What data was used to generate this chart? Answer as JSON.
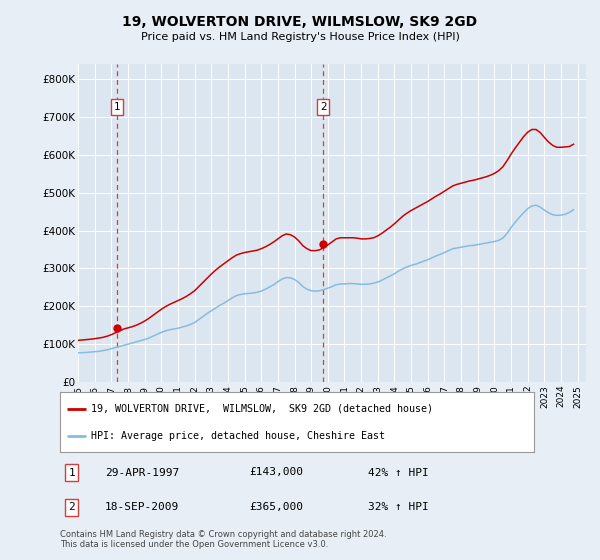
{
  "title": "19, WOLVERTON DRIVE, WILMSLOW, SK9 2GD",
  "subtitle": "Price paid vs. HM Land Registry's House Price Index (HPI)",
  "ylabel_ticks": [
    "£0",
    "£100K",
    "£200K",
    "£300K",
    "£400K",
    "£500K",
    "£600K",
    "£700K",
    "£800K"
  ],
  "ytick_values": [
    0,
    100000,
    200000,
    300000,
    400000,
    500000,
    600000,
    700000,
    800000
  ],
  "ylim": [
    0,
    840000
  ],
  "xlim_start": 1995.0,
  "xlim_end": 2025.5,
  "sale1_x": 1997.33,
  "sale1_y": 143000,
  "sale1_label": "1",
  "sale1_date": "29-APR-1997",
  "sale1_price": "£143,000",
  "sale1_hpi": "42% ↑ HPI",
  "sale2_x": 2009.72,
  "sale2_y": 365000,
  "sale2_label": "2",
  "sale2_date": "18-SEP-2009",
  "sale2_price": "£365,000",
  "sale2_hpi": "32% ↑ HPI",
  "vline_color": "#d04040",
  "sale_dot_color": "#cc0000",
  "hpi_line_color": "#88bbdd",
  "price_line_color": "#cc0000",
  "bg_color": "#e8eef5",
  "plot_bg_color": "#dce6f0",
  "legend_line1": "19, WOLVERTON DRIVE,  WILMSLOW,  SK9 2GD (detached house)",
  "legend_line2": "HPI: Average price, detached house, Cheshire East",
  "footnote": "Contains HM Land Registry data © Crown copyright and database right 2024.\nThis data is licensed under the Open Government Licence v3.0.",
  "hpi_data_x": [
    1995.0,
    1995.25,
    1995.5,
    1995.75,
    1996.0,
    1996.25,
    1996.5,
    1996.75,
    1997.0,
    1997.25,
    1997.5,
    1997.75,
    1998.0,
    1998.25,
    1998.5,
    1998.75,
    1999.0,
    1999.25,
    1999.5,
    1999.75,
    2000.0,
    2000.25,
    2000.5,
    2000.75,
    2001.0,
    2001.25,
    2001.5,
    2001.75,
    2002.0,
    2002.25,
    2002.5,
    2002.75,
    2003.0,
    2003.25,
    2003.5,
    2003.75,
    2004.0,
    2004.25,
    2004.5,
    2004.75,
    2005.0,
    2005.25,
    2005.5,
    2005.75,
    2006.0,
    2006.25,
    2006.5,
    2006.75,
    2007.0,
    2007.25,
    2007.5,
    2007.75,
    2008.0,
    2008.25,
    2008.5,
    2008.75,
    2009.0,
    2009.25,
    2009.5,
    2009.75,
    2010.0,
    2010.25,
    2010.5,
    2010.75,
    2011.0,
    2011.25,
    2011.5,
    2011.75,
    2012.0,
    2012.25,
    2012.5,
    2012.75,
    2013.0,
    2013.25,
    2013.5,
    2013.75,
    2014.0,
    2014.25,
    2014.5,
    2014.75,
    2015.0,
    2015.25,
    2015.5,
    2015.75,
    2016.0,
    2016.25,
    2016.5,
    2016.75,
    2017.0,
    2017.25,
    2017.5,
    2017.75,
    2018.0,
    2018.25,
    2018.5,
    2018.75,
    2019.0,
    2019.25,
    2019.5,
    2019.75,
    2020.0,
    2020.25,
    2020.5,
    2020.75,
    2021.0,
    2021.25,
    2021.5,
    2021.75,
    2022.0,
    2022.25,
    2022.5,
    2022.75,
    2023.0,
    2023.25,
    2023.5,
    2023.75,
    2024.0,
    2024.25,
    2024.5,
    2024.75
  ],
  "hpi_data_y": [
    77000,
    77500,
    78000,
    79000,
    80000,
    81000,
    83000,
    85000,
    88000,
    91000,
    94000,
    97000,
    100000,
    103000,
    106000,
    109000,
    112000,
    116000,
    121000,
    126000,
    131000,
    135000,
    138000,
    140000,
    142000,
    145000,
    148000,
    152000,
    157000,
    165000,
    173000,
    181000,
    188000,
    195000,
    202000,
    208000,
    215000,
    222000,
    228000,
    231000,
    233000,
    234000,
    235000,
    237000,
    240000,
    245000,
    251000,
    257000,
    265000,
    272000,
    276000,
    275000,
    271000,
    263000,
    252000,
    245000,
    241000,
    240000,
    241000,
    244000,
    248000,
    252000,
    257000,
    259000,
    259000,
    260000,
    260000,
    259000,
    258000,
    258000,
    259000,
    261000,
    264000,
    269000,
    275000,
    280000,
    286000,
    293000,
    299000,
    304000,
    308000,
    311000,
    315000,
    319000,
    323000,
    328000,
    333000,
    337000,
    342000,
    347000,
    352000,
    354000,
    356000,
    358000,
    360000,
    361000,
    363000,
    365000,
    367000,
    369000,
    371000,
    374000,
    380000,
    392000,
    408000,
    422000,
    435000,
    447000,
    458000,
    465000,
    467000,
    462000,
    454000,
    447000,
    442000,
    440000,
    441000,
    443000,
    448000,
    455000
  ],
  "price_data_x": [
    1995.0,
    1995.25,
    1995.5,
    1995.75,
    1996.0,
    1996.25,
    1996.5,
    1996.75,
    1997.0,
    1997.25,
    1997.5,
    1997.75,
    1998.0,
    1998.25,
    1998.5,
    1998.75,
    1999.0,
    1999.25,
    1999.5,
    1999.75,
    2000.0,
    2000.25,
    2000.5,
    2000.75,
    2001.0,
    2001.25,
    2001.5,
    2001.75,
    2002.0,
    2002.25,
    2002.5,
    2002.75,
    2003.0,
    2003.25,
    2003.5,
    2003.75,
    2004.0,
    2004.25,
    2004.5,
    2004.75,
    2005.0,
    2005.25,
    2005.5,
    2005.75,
    2006.0,
    2006.25,
    2006.5,
    2006.75,
    2007.0,
    2007.25,
    2007.5,
    2007.75,
    2008.0,
    2008.25,
    2008.5,
    2008.75,
    2009.0,
    2009.25,
    2009.5,
    2009.75,
    2010.0,
    2010.25,
    2010.5,
    2010.75,
    2011.0,
    2011.25,
    2011.5,
    2011.75,
    2012.0,
    2012.25,
    2012.5,
    2012.75,
    2013.0,
    2013.25,
    2013.5,
    2013.75,
    2014.0,
    2014.25,
    2014.5,
    2014.75,
    2015.0,
    2015.25,
    2015.5,
    2015.75,
    2016.0,
    2016.25,
    2016.5,
    2016.75,
    2017.0,
    2017.25,
    2017.5,
    2017.75,
    2018.0,
    2018.25,
    2018.5,
    2018.75,
    2019.0,
    2019.25,
    2019.5,
    2019.75,
    2020.0,
    2020.25,
    2020.5,
    2020.75,
    2021.0,
    2021.25,
    2021.5,
    2021.75,
    2022.0,
    2022.25,
    2022.5,
    2022.75,
    2023.0,
    2023.25,
    2023.5,
    2023.75,
    2024.0,
    2024.25,
    2024.5,
    2024.75
  ],
  "price_data_y": [
    110000,
    111000,
    112000,
    113000,
    114500,
    116000,
    118000,
    121000,
    125000,
    130000,
    135000,
    140000,
    143000,
    146000,
    150000,
    155000,
    161000,
    168000,
    176000,
    184000,
    192000,
    199000,
    205000,
    210000,
    215000,
    220000,
    226000,
    233000,
    241000,
    252000,
    263000,
    274000,
    285000,
    295000,
    304000,
    312000,
    320000,
    328000,
    335000,
    339000,
    342000,
    344000,
    346000,
    348000,
    352000,
    357000,
    363000,
    370000,
    378000,
    386000,
    391000,
    389000,
    383000,
    373000,
    360000,
    352000,
    347000,
    347000,
    349000,
    355000,
    362000,
    370000,
    378000,
    381000,
    381000,
    381000,
    381000,
    380000,
    378000,
    378000,
    379000,
    381000,
    386000,
    393000,
    401000,
    409000,
    418000,
    428000,
    438000,
    446000,
    453000,
    459000,
    465000,
    471000,
    477000,
    484000,
    491000,
    497000,
    504000,
    511000,
    518000,
    522000,
    525000,
    528000,
    531000,
    533000,
    536000,
    539000,
    542000,
    546000,
    551000,
    558000,
    568000,
    584000,
    602000,
    618000,
    633000,
    648000,
    660000,
    667000,
    667000,
    659000,
    646000,
    634000,
    625000,
    620000,
    620000,
    621000,
    622000,
    628000
  ]
}
